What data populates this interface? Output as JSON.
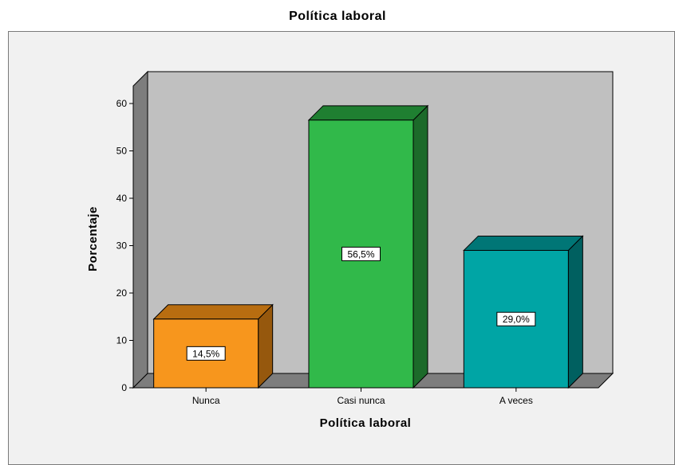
{
  "chart_data": {
    "type": "bar",
    "title": "Política laboral",
    "xlabel": "Política laboral",
    "ylabel": "Porcentaje",
    "categories": [
      "Nunca",
      "Casi nunca",
      "A veces"
    ],
    "values": [
      14.5,
      56.5,
      29.0
    ],
    "data_labels": [
      "14,5%",
      "56,5%",
      "29,0%"
    ],
    "ylim": [
      0,
      60
    ],
    "yticks": [
      0,
      10,
      20,
      30,
      40,
      50,
      60
    ],
    "style": "3d",
    "grid": false,
    "colors": [
      {
        "face": "#f7961d",
        "top": "#b86d10",
        "side": "#96580d"
      },
      {
        "face": "#31b94a",
        "top": "#1f7f31",
        "side": "#1c6a2a"
      },
      {
        "face": "#00a5a5",
        "top": "#007676",
        "side": "#006060"
      }
    ],
    "plot_background": "#c0c0c0"
  }
}
